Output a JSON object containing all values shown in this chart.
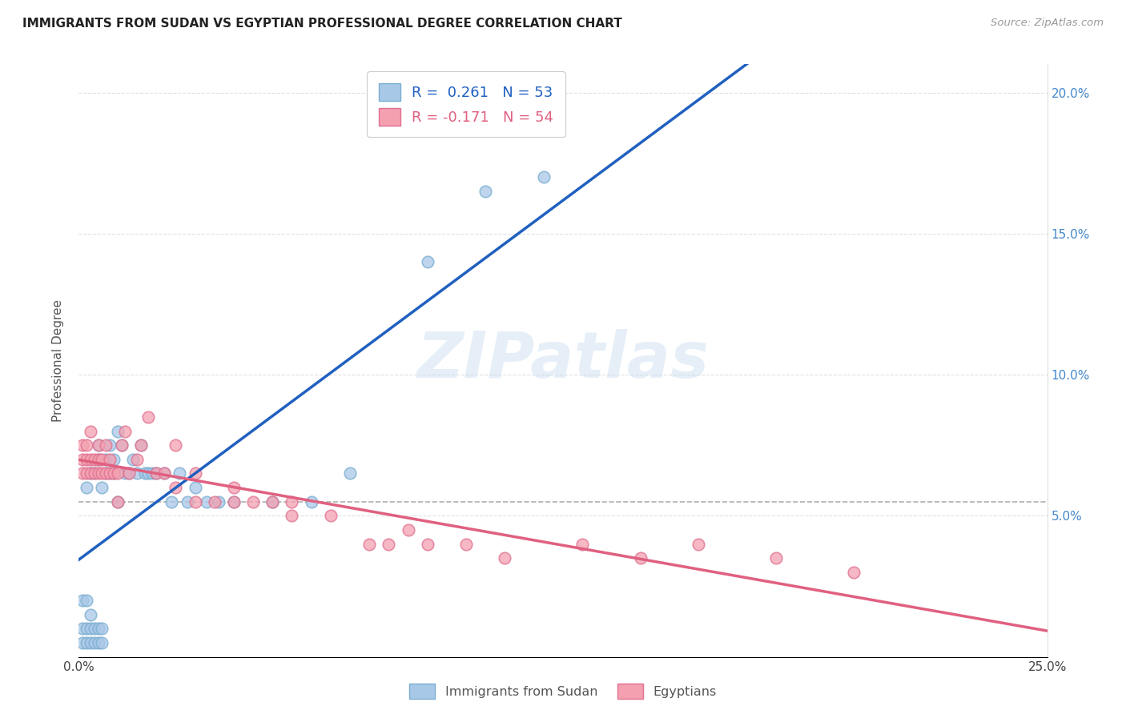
{
  "title": "IMMIGRANTS FROM SUDAN VS EGYPTIAN PROFESSIONAL DEGREE CORRELATION CHART",
  "source": "Source: ZipAtlas.com",
  "ylabel": "Professional Degree",
  "xlim": [
    0.0,
    0.25
  ],
  "ylim": [
    0.0,
    0.21
  ],
  "sudan_color": "#a8c8e8",
  "egypt_color": "#f4a0b0",
  "sudan_edge": "#7aaed0",
  "egypt_edge": "#e07090",
  "sudan_line_color": "#2060c0",
  "egypt_line_color": "#e06080",
  "sudan_R": 0.261,
  "sudan_N": 53,
  "egypt_R": -0.171,
  "egypt_N": 54,
  "watermark": "ZIPatlas",
  "legend_label_sudan": "Immigrants from Sudan",
  "legend_label_egypt": "Egyptians",
  "sudan_scatter_x": [
    0.001,
    0.001,
    0.001,
    0.002,
    0.002,
    0.002,
    0.002,
    0.003,
    0.003,
    0.003,
    0.003,
    0.004,
    0.004,
    0.004,
    0.005,
    0.005,
    0.005,
    0.005,
    0.006,
    0.006,
    0.006,
    0.007,
    0.007,
    0.008,
    0.008,
    0.009,
    0.009,
    0.01,
    0.01,
    0.011,
    0.012,
    0.013,
    0.014,
    0.015,
    0.016,
    0.017,
    0.018,
    0.019,
    0.02,
    0.022,
    0.024,
    0.026,
    0.028,
    0.03,
    0.033,
    0.036,
    0.04,
    0.05,
    0.06,
    0.07,
    0.09,
    0.105,
    0.12
  ],
  "sudan_scatter_y": [
    0.005,
    0.01,
    0.02,
    0.005,
    0.01,
    0.02,
    0.06,
    0.005,
    0.01,
    0.015,
    0.065,
    0.005,
    0.01,
    0.065,
    0.005,
    0.01,
    0.07,
    0.075,
    0.005,
    0.01,
    0.06,
    0.065,
    0.07,
    0.065,
    0.075,
    0.065,
    0.07,
    0.055,
    0.08,
    0.075,
    0.065,
    0.065,
    0.07,
    0.065,
    0.075,
    0.065,
    0.065,
    0.065,
    0.065,
    0.065,
    0.055,
    0.065,
    0.055,
    0.06,
    0.055,
    0.055,
    0.055,
    0.055,
    0.055,
    0.065,
    0.14,
    0.165,
    0.17
  ],
  "egypt_scatter_x": [
    0.001,
    0.001,
    0.001,
    0.002,
    0.002,
    0.002,
    0.003,
    0.003,
    0.003,
    0.004,
    0.004,
    0.005,
    0.005,
    0.005,
    0.006,
    0.006,
    0.007,
    0.007,
    0.008,
    0.008,
    0.009,
    0.01,
    0.01,
    0.011,
    0.012,
    0.013,
    0.015,
    0.016,
    0.018,
    0.02,
    0.022,
    0.025,
    0.025,
    0.03,
    0.03,
    0.035,
    0.04,
    0.04,
    0.045,
    0.05,
    0.055,
    0.055,
    0.065,
    0.075,
    0.08,
    0.085,
    0.09,
    0.1,
    0.11,
    0.13,
    0.145,
    0.16,
    0.18,
    0.2
  ],
  "egypt_scatter_y": [
    0.065,
    0.07,
    0.075,
    0.065,
    0.07,
    0.075,
    0.065,
    0.07,
    0.08,
    0.065,
    0.07,
    0.065,
    0.07,
    0.075,
    0.065,
    0.07,
    0.065,
    0.075,
    0.065,
    0.07,
    0.065,
    0.055,
    0.065,
    0.075,
    0.08,
    0.065,
    0.07,
    0.075,
    0.085,
    0.065,
    0.065,
    0.06,
    0.075,
    0.055,
    0.065,
    0.055,
    0.055,
    0.06,
    0.055,
    0.055,
    0.05,
    0.055,
    0.05,
    0.04,
    0.04,
    0.045,
    0.04,
    0.04,
    0.035,
    0.04,
    0.035,
    0.04,
    0.035,
    0.03
  ],
  "background_color": "#ffffff",
  "grid_color": "#e0e0e0",
  "dash_line_x": [
    0.0,
    0.25
  ],
  "dash_line_y": [
    0.055,
    0.055
  ]
}
